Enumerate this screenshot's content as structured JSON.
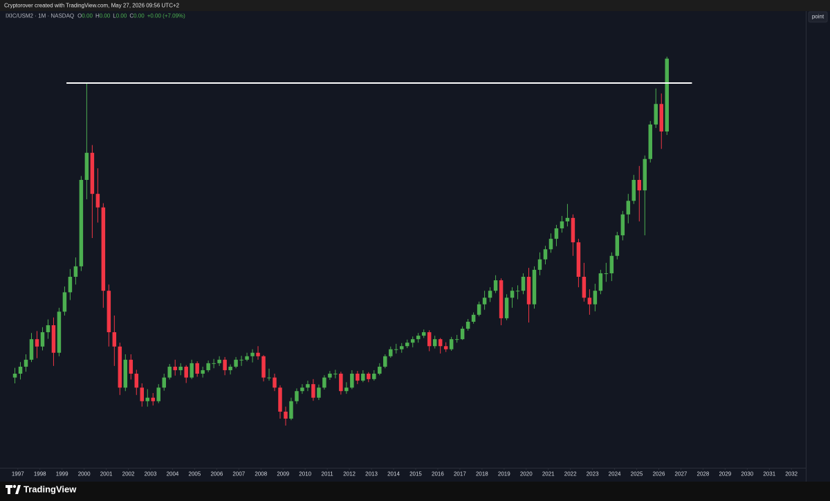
{
  "header": {
    "credit": "Cryptorover created with TradingView.com, May 27, 2026 09:56 UTC+2"
  },
  "toolbar": {
    "button": "point"
  },
  "footer": {
    "brand": "TradingView"
  },
  "chart_data": {
    "type": "candlestick",
    "symbol": "IXIC/USM2 · 1M · NASDAQ",
    "ohlc": [
      {
        "label": "O",
        "value": "0.00"
      },
      {
        "label": "H",
        "value": "0.00"
      },
      {
        "label": "L",
        "value": "0.00"
      },
      {
        "label": "C",
        "value": "0.00"
      }
    ],
    "change": "+0.00 (+7.09%)",
    "up_color": "#4caf50",
    "down_color": "#f23645",
    "xlim": [
      1996.35,
      2032.65
    ],
    "ylim": [
      0,
      118
    ],
    "xticks": [
      1997,
      1998,
      1999,
      2000,
      2001,
      2002,
      2003,
      2004,
      2005,
      2006,
      2007,
      2008,
      2009,
      2010,
      2011,
      2012,
      2013,
      2014,
      2015,
      2016,
      2017,
      2018,
      2019,
      2020,
      2021,
      2022,
      2023,
      2024,
      2025,
      2026,
      2027,
      2028,
      2029,
      2030,
      2031,
      2032
    ],
    "x": [
      1996.75,
      1997,
      1997.25,
      1997.5,
      1997.75,
      1998,
      1998.25,
      1998.5,
      1998.75,
      1999,
      1999.25,
      1999.5,
      1999.75,
      2000,
      2000.25,
      2000.5,
      2000.75,
      2001,
      2001.25,
      2001.5,
      2001.75,
      2002,
      2002.25,
      2002.5,
      2002.75,
      2003,
      2003.25,
      2003.5,
      2003.75,
      2004,
      2004.25,
      2004.5,
      2004.75,
      2005,
      2005.25,
      2005.5,
      2005.75,
      2006,
      2006.25,
      2006.5,
      2006.75,
      2007,
      2007.25,
      2007.5,
      2007.75,
      2008,
      2008.25,
      2008.5,
      2008.75,
      2009,
      2009.25,
      2009.5,
      2009.75,
      2010,
      2010.25,
      2010.5,
      2010.75,
      2011,
      2011.25,
      2011.5,
      2011.75,
      2012,
      2012.25,
      2012.5,
      2012.75,
      2013,
      2013.25,
      2013.5,
      2013.75,
      2014,
      2014.25,
      2014.5,
      2014.75,
      2015,
      2015.25,
      2015.5,
      2015.75,
      2016,
      2016.25,
      2016.5,
      2016.75,
      2017,
      2017.25,
      2017.5,
      2017.75,
      2018,
      2018.25,
      2018.5,
      2018.75,
      2019,
      2019.25,
      2019.5,
      2019.75,
      2020,
      2020.25,
      2020.5,
      2020.75,
      2021,
      2021.25,
      2021.5,
      2021.75,
      2022,
      2022.25,
      2022.5,
      2022.75,
      2023,
      2023.25,
      2023.5,
      2023.75,
      2024,
      2024.25,
      2024.5,
      2024.75,
      2025,
      2025.25,
      2025.5,
      2025.75,
      2026,
      2026.25
    ],
    "open": [
      24,
      25,
      26.8,
      28.6,
      33.9,
      32,
      35.7,
      37.5,
      30.4,
      41,
      46,
      50,
      52.7,
      75,
      82,
      71.4,
      67.9,
      46.4,
      35.7,
      32,
      21.4,
      28.6,
      25,
      21.4,
      17.9,
      18.8,
      17.9,
      21.4,
      24,
      26.8,
      25.9,
      26.8,
      24,
      27.7,
      25,
      25.9,
      27.7,
      27.7,
      28.6,
      25.9,
      26.8,
      28.6,
      28.6,
      29.5,
      30.4,
      29.5,
      24,
      24,
      21.4,
      15.2,
      13.4,
      17.9,
      20.5,
      21.4,
      22.3,
      18.8,
      21.4,
      24,
      25,
      25,
      20.5,
      21.4,
      25,
      23.2,
      25,
      23.6,
      25,
      26.8,
      29.5,
      31.3,
      31.3,
      32.1,
      33,
      33.9,
      34.8,
      35.7,
      32.1,
      33.9,
      32.1,
      31.3,
      33.9,
      33.9,
      36.6,
      38.4,
      40.2,
      42.9,
      44.6,
      46.4,
      49.1,
      39.3,
      44.6,
      46.4,
      46.4,
      50,
      42.9,
      51.8,
      54.5,
      57.1,
      59.8,
      62.5,
      64.3,
      65.2,
      58.9,
      50,
      44.6,
      42.9,
      46.4,
      50.9,
      50.9,
      55.4,
      60.7,
      66.1,
      69.6,
      75,
      72.3,
      80.4,
      89.3,
      94.6,
      87.5
    ],
    "high": [
      26.5,
      28,
      30,
      35.5,
      36,
      37,
      39,
      39.5,
      42,
      47.5,
      52,
      55,
      76,
      100,
      84,
      78,
      69,
      48,
      40,
      33,
      30,
      30,
      26,
      22.5,
      21,
      20,
      22.3,
      25,
      27.5,
      28.6,
      27.7,
      27.2,
      28.6,
      28.2,
      26.8,
      28.4,
      28.8,
      29.5,
      29.3,
      27.4,
      29.3,
      29.6,
      30.4,
      31.3,
      32.1,
      29.8,
      26.3,
      25,
      22,
      16.5,
      18.8,
      21.2,
      22.3,
      23.2,
      23.6,
      22.2,
      24.6,
      25.7,
      26,
      25.5,
      22.8,
      25.9,
      25.7,
      25.9,
      25.4,
      25.9,
      27.7,
      30,
      32,
      32.7,
      32.9,
      33.8,
      34.6,
      35.5,
      36.4,
      36.2,
      34.8,
      34.2,
      33.1,
      34.5,
      35,
      37.2,
      39.1,
      40.8,
      43.6,
      46.4,
      47.3,
      50.4,
      49.6,
      45.5,
      47.3,
      47.8,
      50.9,
      52.3,
      52.7,
      56.3,
      58,
      61.2,
      63.4,
      65.7,
      68.8,
      66.1,
      59.8,
      53.6,
      46.8,
      48.2,
      51.8,
      53.6,
      56.3,
      61.6,
      67,
      71.4,
      76.3,
      78.6,
      81.3,
      90.2,
      98.6,
      97.3,
      106.8
    ],
    "low": [
      22.5,
      23.5,
      25.5,
      28,
      29,
      31,
      34,
      27,
      29.5,
      40,
      44,
      48,
      51.5,
      70,
      60,
      64,
      42,
      32,
      27,
      19.5,
      20.5,
      23.5,
      19.5,
      16.5,
      16.5,
      16.8,
      17.4,
      20.6,
      23.5,
      24.5,
      24.6,
      22.6,
      23.6,
      24.2,
      24,
      25.4,
      26.4,
      27,
      24.6,
      24.8,
      26.4,
      27,
      28.2,
      27.9,
      28.6,
      23,
      23.2,
      20.5,
      13.4,
      11.6,
      13,
      17.2,
      19.8,
      20.5,
      18,
      18.2,
      20.9,
      23.4,
      23.8,
      19.6,
      19.8,
      21,
      22.3,
      22.8,
      22.8,
      23.2,
      24.6,
      26.4,
      29.1,
      30.2,
      30.4,
      31.6,
      31.8,
      33,
      34.2,
      30.8,
      31.5,
      30.2,
      30.6,
      30.9,
      33,
      33.7,
      36.1,
      37.9,
      39.8,
      41.5,
      43.5,
      45.8,
      37.5,
      38.8,
      42,
      44.2,
      45.5,
      38.2,
      41.8,
      50.4,
      53.2,
      56.2,
      57.9,
      61.4,
      63,
      55.4,
      47.3,
      43.6,
      40.2,
      41.1,
      45.5,
      48.7,
      48.9,
      54.5,
      59.4,
      63.8,
      68.8,
      64.3,
      60.7,
      79.5,
      88.4,
      83,
      86.6
    ],
    "close": [
      25,
      26.8,
      28.6,
      33.9,
      32,
      35.7,
      37.5,
      30.4,
      41,
      46,
      50,
      52.7,
      75,
      82,
      71.4,
      67.9,
      46.4,
      35.7,
      32,
      21.4,
      28.6,
      25,
      21.4,
      17.9,
      18.8,
      17.9,
      21.4,
      24,
      26.8,
      25.9,
      26.8,
      24,
      27.7,
      25,
      25.9,
      27.7,
      27.7,
      28.6,
      25.9,
      26.8,
      28.6,
      28.6,
      29.5,
      30.4,
      29.5,
      24,
      24,
      21.4,
      15.2,
      13.4,
      17.9,
      20.5,
      21.4,
      22.3,
      18.8,
      21.4,
      24,
      25,
      25,
      20.5,
      21.4,
      25,
      23.2,
      25,
      23.6,
      25,
      26.8,
      29.5,
      31.3,
      31.3,
      32.1,
      33,
      33.9,
      34.8,
      35.7,
      32.1,
      33.9,
      32.1,
      31.3,
      33.9,
      33.9,
      36.6,
      38.4,
      40.2,
      42.9,
      44.6,
      46.4,
      49.1,
      39.3,
      44.6,
      46.4,
      46.4,
      50,
      42.9,
      51.8,
      54.5,
      57.1,
      59.8,
      62.5,
      64.3,
      65.2,
      58.9,
      50,
      44.6,
      42.9,
      46.4,
      50.9,
      50.9,
      55.4,
      60.7,
      66.1,
      69.6,
      75,
      72.3,
      80.4,
      89.3,
      94.6,
      87.5,
      106.3
    ],
    "hline": {
      "value": 100,
      "x": [
        1999.2,
        2027.5
      ],
      "color": "#ffffff"
    }
  }
}
